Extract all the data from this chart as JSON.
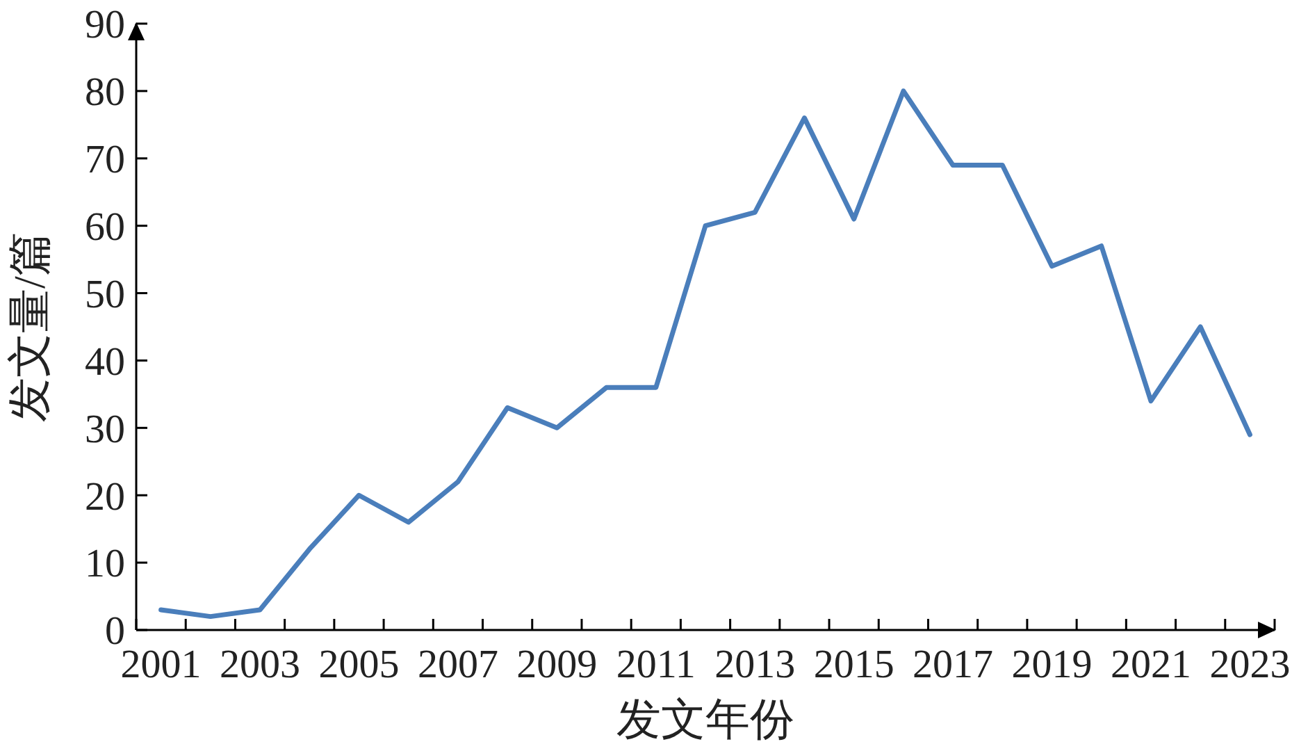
{
  "chart_data": {
    "type": "line",
    "xlabel": "发文年份",
    "ylabel": "发文量/篇",
    "categories": [
      "2001",
      null,
      "2003",
      null,
      "2005",
      null,
      "2007",
      null,
      "2009",
      null,
      "2011",
      null,
      "2013",
      null,
      "2015",
      null,
      "2017",
      null,
      "2019",
      null,
      "2021",
      null,
      "2023"
    ],
    "values": [
      3,
      2,
      3,
      12,
      20,
      16,
      22,
      33,
      30,
      36,
      36,
      60,
      62,
      76,
      61,
      80,
      69,
      69,
      54,
      57,
      34,
      45,
      29
    ],
    "color": "#4a7ebb",
    "ylim": [
      0,
      90
    ],
    "yticks": [
      0,
      10,
      20,
      30,
      40,
      50,
      60,
      70,
      80,
      90
    ]
  }
}
